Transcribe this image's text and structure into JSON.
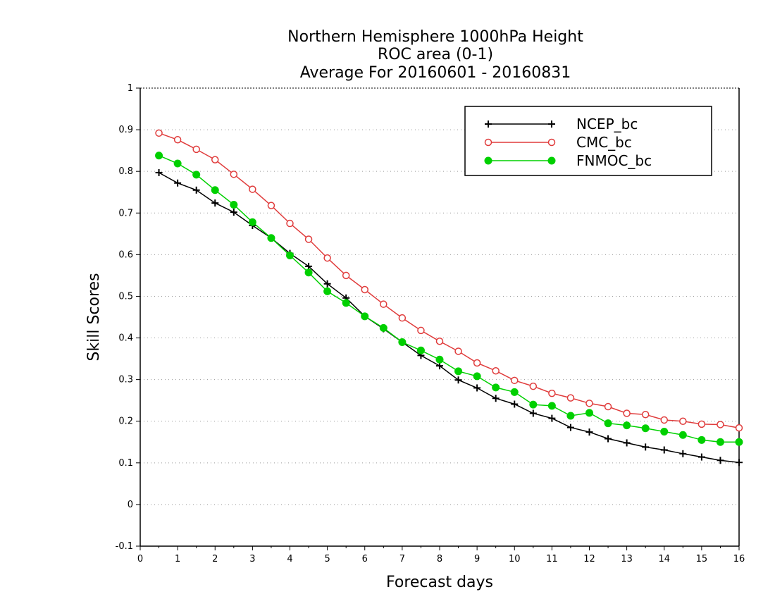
{
  "chart_data": {
    "type": "line",
    "title": [
      "Northern Hemisphere 1000hPa Height",
      "ROC area (0-1)",
      "Average For 20160601 - 20160831"
    ],
    "xlabel": "Forecast days",
    "ylabel": "Skill Scores",
    "xlim": [
      0,
      16
    ],
    "ylim": [
      -0.1,
      1
    ],
    "xticks": [
      0,
      1,
      2,
      3,
      4,
      5,
      6,
      7,
      8,
      9,
      10,
      11,
      12,
      13,
      14,
      15,
      16
    ],
    "yticks": [
      -0.1,
      0,
      0.1,
      0.2,
      0.3,
      0.4,
      0.5,
      0.6,
      0.7,
      0.8,
      0.9,
      1
    ],
    "ytick_labels": [
      "-0.1",
      "0",
      "0.1",
      "0.2",
      "0.3",
      "0.4",
      "0.5",
      "0.6",
      "0.7",
      "0.8",
      "0.9",
      "1"
    ],
    "grid": "horizontal-dotted",
    "legend_position": "top-right",
    "x": [
      0.5,
      1,
      1.5,
      2,
      2.5,
      3,
      3.5,
      4,
      4.5,
      5,
      5.5,
      6,
      6.5,
      7,
      7.5,
      8,
      8.5,
      9,
      9.5,
      10,
      10.5,
      11,
      11.5,
      12,
      12.5,
      13,
      13.5,
      14,
      14.5,
      15,
      15.5,
      16
    ],
    "series": [
      {
        "name": "NCEP_bc",
        "color": "#000000",
        "marker": "plus",
        "values": [
          0.797,
          0.772,
          0.755,
          0.724,
          0.702,
          0.67,
          0.64,
          0.603,
          0.572,
          0.53,
          0.496,
          0.452,
          0.422,
          0.39,
          0.358,
          0.333,
          0.299,
          0.28,
          0.255,
          0.241,
          0.219,
          0.207,
          0.185,
          0.174,
          0.158,
          0.148,
          0.138,
          0.131,
          0.122,
          0.114,
          0.106,
          0.101
        ]
      },
      {
        "name": "CMC_bc",
        "color": "#e03c3c",
        "marker": "open-circle",
        "values": [
          0.892,
          0.876,
          0.853,
          0.828,
          0.793,
          0.757,
          0.718,
          0.675,
          0.637,
          0.592,
          0.55,
          0.516,
          0.481,
          0.448,
          0.418,
          0.392,
          0.368,
          0.34,
          0.321,
          0.298,
          0.284,
          0.267,
          0.256,
          0.243,
          0.235,
          0.219,
          0.216,
          0.203,
          0.2,
          0.193,
          0.192,
          0.184
        ]
      },
      {
        "name": "FNMOC_bc",
        "color": "#00d000",
        "marker": "filled-circle",
        "values": [
          0.838,
          0.819,
          0.792,
          0.755,
          0.72,
          0.678,
          0.64,
          0.598,
          0.557,
          0.512,
          0.484,
          0.452,
          0.424,
          0.39,
          0.37,
          0.348,
          0.32,
          0.308,
          0.281,
          0.27,
          0.24,
          0.237,
          0.213,
          0.22,
          0.195,
          0.19,
          0.183,
          0.175,
          0.167,
          0.155,
          0.15,
          0.15
        ]
      }
    ]
  }
}
